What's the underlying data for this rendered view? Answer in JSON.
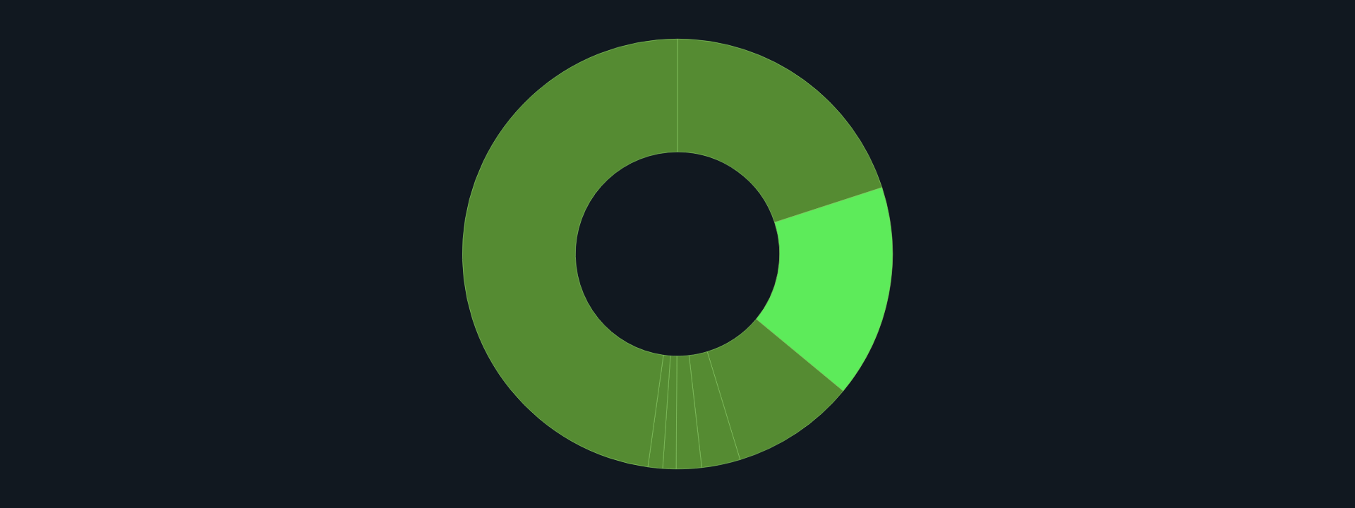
{
  "chart_data": {
    "type": "donut",
    "categories": [
      null,
      null,
      null,
      null,
      null,
      null,
      null,
      null
    ],
    "values": [
      20.0,
      16.0,
      9.3,
      2.9,
      1.9,
      1.0,
      1.1,
      47.8
    ],
    "colors": [
      "#558b32",
      "#5deb5a",
      "#558b32",
      "#558b32",
      "#558b32",
      "#558b32",
      "#558b32",
      "#558b32"
    ],
    "legend": false
  }
}
